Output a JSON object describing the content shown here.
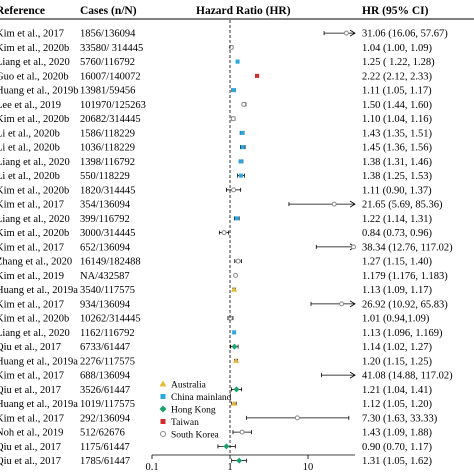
{
  "chart_data": {
    "type": "forest",
    "headers": {
      "reference": "Reference",
      "cases": "Cases (n/N)",
      "plot": "Hazard Ratio (HR)",
      "hr": "HR (95% CI)"
    },
    "x_scale": "log",
    "xlim": [
      0.1,
      40
    ],
    "xticks": [
      "0.1",
      "1",
      "10"
    ],
    "reference_line": 1,
    "rows": [
      {
        "ref": "Kim et al., 2017",
        "cases": "1856/136094",
        "hr": 31.06,
        "lo": 16.06,
        "hi": 57.67,
        "text": "31.06 (16.06, 57.67)",
        "region": "South Korea"
      },
      {
        "ref": "Kim et al., 2020b",
        "cases": "33580/ 314445",
        "hr": 1.04,
        "lo": 1.0,
        "hi": 1.09,
        "text": "1.04 (1.00, 1.09)",
        "region": "South Korea"
      },
      {
        "ref": "Liang et al., 2020",
        "cases": "5760/116792",
        "hr": 1.25,
        "lo": 1.22,
        "hi": 1.28,
        "text": "1.25 ( 1.22, 1.28)",
        "region": "China mainland"
      },
      {
        "ref": "Guo et al., 2020b",
        "cases": "16007/140072",
        "hr": 2.22,
        "lo": 2.12,
        "hi": 2.33,
        "text": "2.22 (2.12, 2.33)",
        "region": "Taiwan"
      },
      {
        "ref": "Huang et al., 2019b",
        "cases": "13981/59456",
        "hr": 1.11,
        "lo": 1.05,
        "hi": 1.17,
        "text": "1.11 (1.05, 1.17)",
        "region": "China mainland"
      },
      {
        "ref": "Lee et al., 2019",
        "cases": "101970/125263",
        "hr": 1.5,
        "lo": 1.44,
        "hi": 1.6,
        "text": "1.50 (1.44, 1.60)",
        "region": "South Korea"
      },
      {
        "ref": "Kim et al., 2020b",
        "cases": "20682/314445",
        "hr": 1.1,
        "lo": 1.04,
        "hi": 1.16,
        "text": "1.10 (1.04, 1.16)",
        "region": "South Korea"
      },
      {
        "ref": "Li et al., 2020b",
        "cases": "1586/118229",
        "hr": 1.43,
        "lo": 1.35,
        "hi": 1.51,
        "text": "1.43 (1.35, 1.51)",
        "region": "China mainland"
      },
      {
        "ref": "Li et al., 2020b",
        "cases": "1036/118229",
        "hr": 1.45,
        "lo": 1.36,
        "hi": 1.56,
        "text": "1.45 (1.36, 1.56)",
        "region": "China mainland"
      },
      {
        "ref": "Liang et al., 2020",
        "cases": "1398/116792",
        "hr": 1.38,
        "lo": 1.31,
        "hi": 1.46,
        "text": "1.38 (1.31, 1.46)",
        "region": "China mainland"
      },
      {
        "ref": "Li et al., 2020b",
        "cases": "550/118229",
        "hr": 1.38,
        "lo": 1.25,
        "hi": 1.53,
        "text": "1.38 (1.25, 1.53)",
        "region": "China mainland"
      },
      {
        "ref": "Kim et al., 2020b",
        "cases": "1820/314445",
        "hr": 1.11,
        "lo": 0.9,
        "hi": 1.37,
        "text": "1.11 (0.90, 1.37)",
        "region": "South Korea"
      },
      {
        "ref": "Kim et al., 2017",
        "cases": "354/136094",
        "hr": 21.65,
        "lo": 5.69,
        "hi": 85.36,
        "text": "21.65 (5.69, 85.36)",
        "region": "South Korea"
      },
      {
        "ref": "Liang et al., 2020",
        "cases": "399/116792",
        "hr": 1.22,
        "lo": 1.14,
        "hi": 1.31,
        "text": "1.22 (1.14, 1.31)",
        "region": "China mainland"
      },
      {
        "ref": "Kim et al., 2020b",
        "cases": "3000/314445",
        "hr": 0.84,
        "lo": 0.73,
        "hi": 0.96,
        "text": "0.84 (0.73, 0.96)",
        "region": "South Korea"
      },
      {
        "ref": "Kim et al., 2017",
        "cases": "652/136094",
        "hr": 38.34,
        "lo": 12.76,
        "hi": 117.02,
        "text": "38.34 (12.76, 117.02)",
        "region": "South Korea"
      },
      {
        "ref": "Zhang et al., 2020",
        "cases": "16149/182488",
        "hr": 1.27,
        "lo": 1.15,
        "hi": 1.4,
        "text": "1.27 (1.15, 1.40)",
        "region": "South Korea"
      },
      {
        "ref": "Kim et al., 2019",
        "cases": "NA/432587",
        "hr": 1.179,
        "lo": 1.176,
        "hi": 1.183,
        "text": "1.179 (1.176, 1.183)",
        "region": "South Korea"
      },
      {
        "ref": "Huang et al., 2019a",
        "cases": "3540/117575",
        "hr": 1.13,
        "lo": 1.09,
        "hi": 1.17,
        "text": "1.13 (1.09, 1.17)",
        "region": "Australia"
      },
      {
        "ref": "Kim et al., 2017",
        "cases": "934/136094",
        "hr": 26.92,
        "lo": 10.92,
        "hi": 65.83,
        "text": "26.92 (10.92, 65.83)",
        "region": "South Korea"
      },
      {
        "ref": "Kim et al., 2020b",
        "cases": "10262/314445",
        "hr": 1.01,
        "lo": 0.94,
        "hi": 1.09,
        "text": "1.01 (0.94,1.09)",
        "region": "South Korea"
      },
      {
        "ref": "Liang et al., 2020",
        "cases": "1162/116792",
        "hr": 1.13,
        "lo": 1.096,
        "hi": 1.169,
        "text": "1.13  (1.096, 1.169)",
        "region": "China mainland"
      },
      {
        "ref": "Qiu et al., 2017",
        "cases": "6733/61447",
        "hr": 1.14,
        "lo": 1.02,
        "hi": 1.27,
        "text": "1.14 (1.02, 1.27)",
        "region": "Hong Kong"
      },
      {
        "ref": "Huang et al., 2019a",
        "cases": "2276/117575",
        "hr": 1.2,
        "lo": 1.15,
        "hi": 1.25,
        "text": "1.20 (1.15, 1.25)",
        "region": "Australia"
      },
      {
        "ref": "Kim et al., 2017",
        "cases": "688/136094",
        "hr": 41.08,
        "lo": 14.88,
        "hi": 117.02,
        "text": "41.08 (14.88, 117.02)",
        "region": "South Korea"
      },
      {
        "ref": "Qiu et al., 2017",
        "cases": "3526/61447",
        "hr": 1.21,
        "lo": 1.04,
        "hi": 1.41,
        "text": "1.21 (1.04, 1.41)",
        "region": "Hong Kong"
      },
      {
        "ref": "Huang et al., 2019a",
        "cases": "1019/117575",
        "hr": 1.12,
        "lo": 1.05,
        "hi": 1.2,
        "text": "1.12 (1.05, 1.20)",
        "region": "Australia"
      },
      {
        "ref": "Kim et al., 2017",
        "cases": "292/136094",
        "hr": 7.3,
        "lo": 1.63,
        "hi": 33.33,
        "text": "7.30 (1.63, 33.33)",
        "region": "South Korea"
      },
      {
        "ref": "Noh et al., 2019",
        "cases": "512/62676",
        "hr": 1.43,
        "lo": 1.09,
        "hi": 1.88,
        "text": "1.43 (1.09, 1.88)",
        "region": "South Korea"
      },
      {
        "ref": "Qiu et al., 2017",
        "cases": "1175/61447",
        "hr": 0.9,
        "lo": 0.7,
        "hi": 1.17,
        "text": "0.90 (0.70, 1.17)",
        "region": "Hong Kong"
      },
      {
        "ref": "Qiu et al., 2017",
        "cases": "1785/61447",
        "hr": 1.31,
        "lo": 1.05,
        "hi": 1.62,
        "text": "1.31 (1.05, 1.62)",
        "region": "Hong Kong"
      }
    ],
    "legend": [
      {
        "name": "Australia",
        "marker": "triangle",
        "color": "#e8b83a"
      },
      {
        "name": "China mainland",
        "marker": "square",
        "color": "#2aa9e0"
      },
      {
        "name": "Hong Kong",
        "marker": "diamond",
        "color": "#1aa36a"
      },
      {
        "name": "Taiwan",
        "marker": "square",
        "color": "#d42a2a"
      },
      {
        "name": "South Korea",
        "marker": "circle-open",
        "color": "#888888"
      }
    ],
    "legend_position": "bottom-center"
  }
}
